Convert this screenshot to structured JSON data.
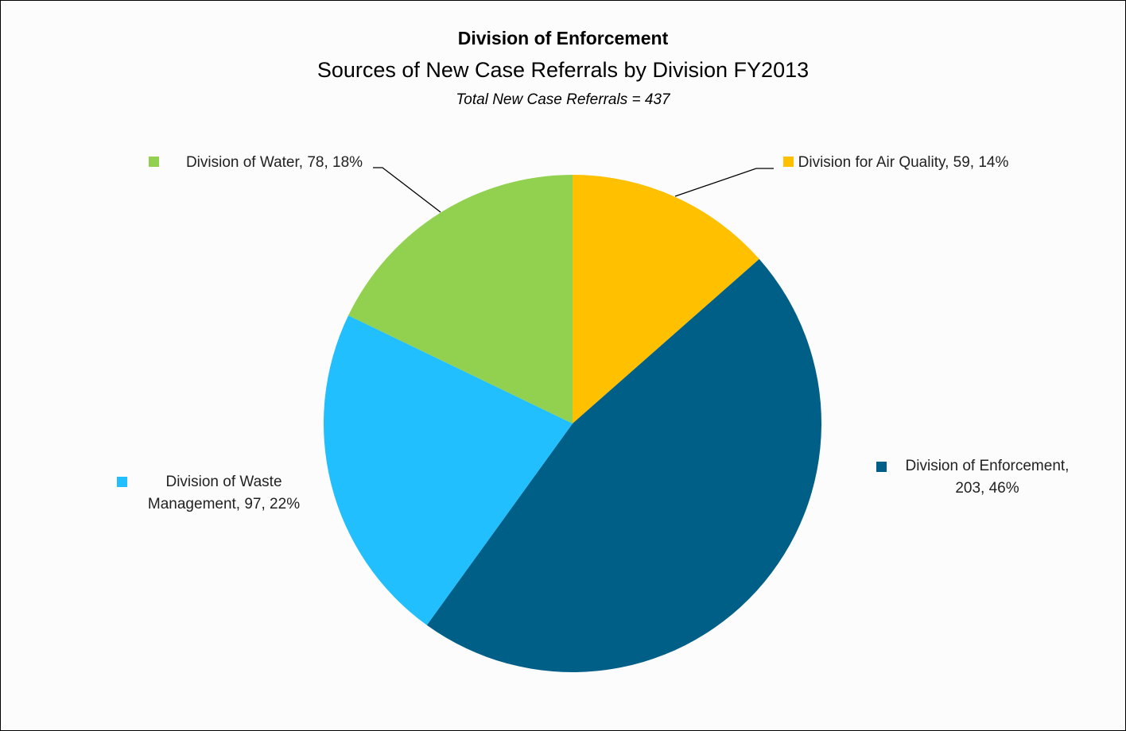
{
  "chart_data": {
    "type": "pie",
    "title": "Division of Enforcement",
    "subtitle": "Sources of New Case Referrals by Division FY2013",
    "note": "Total New Case Referrals = 437",
    "values": [
      59,
      203,
      97,
      78
    ],
    "value_labels": [
      "Division for Air Quality, 59, 14%",
      "Division of Enforcement, 203, 46%",
      "Division of Waste Management, 97, 22%",
      "Division of Water, 78, 18%"
    ],
    "colors": [
      "#FFC000",
      "#005F87",
      "#21BFFD",
      "#92D050"
    ],
    "start_angle": 0,
    "direction": "clockwise"
  }
}
